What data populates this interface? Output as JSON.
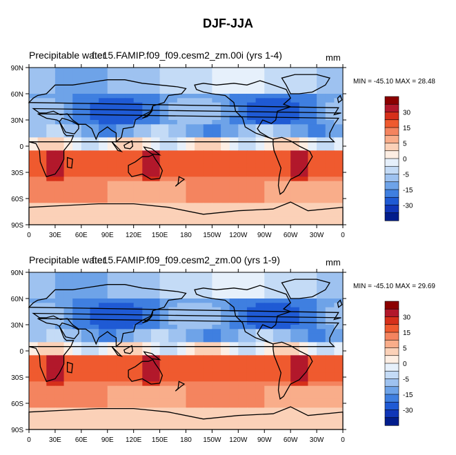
{
  "main_title": "DJF-JJA",
  "panels": [
    {
      "label_left": "Precipitable water",
      "label_center": "f.e15.FAMIP.f09_f09.cesm2_zm.00i (yrs 1-4)",
      "unit": "mm",
      "stats": "MIN = -45.10 MAX =  28.48"
    },
    {
      "label_left": "Precipitable water",
      "label_center": "f.e15.FAMIP.f09_f09.cesm2_zm.00 (yrs 1-9)",
      "unit": "mm",
      "stats": "MIN = -45.10 MAX =  29.69"
    }
  ],
  "chart_data": {
    "type": "heatmap",
    "title": "DJF-JJA",
    "xlabel": "",
    "ylabel": "",
    "x_ticks": [
      "0",
      "30E",
      "60E",
      "90E",
      "120E",
      "150E",
      "180",
      "150W",
      "120W",
      "90W",
      "60W",
      "30W",
      "0"
    ],
    "y_ticks": [
      "90N",
      "60N",
      "30N",
      "0",
      "30S",
      "60S",
      "90S"
    ],
    "colorbar_labels": [
      "30",
      "15",
      "5",
      "0",
      "-5",
      "-15",
      "-30"
    ],
    "colorbar_colors": [
      "#8b0000",
      "#b2182b",
      "#d6301a",
      "#ef5a2f",
      "#f4845f",
      "#f9ad8a",
      "#fbd1b8",
      "#fdeee3",
      "#e6f0fb",
      "#c4dbf6",
      "#9ec2f0",
      "#6ea3e8",
      "#3f7fe0",
      "#1f5ad4",
      "#1036b8",
      "#021d8c"
    ],
    "series": [
      {
        "label": "f.e15.FAMIP.f09_f09.cesm2_zm.00i (yrs 1-4)",
        "min": -45.1,
        "max": 28.48,
        "zonal_bands": [
          {
            "lat": "90N-60N",
            "value": -12
          },
          {
            "lat": "60N-30N",
            "value": -22
          },
          {
            "lat": "30N-15N",
            "value": -18
          },
          {
            "lat": "15N-0",
            "value": -6
          },
          {
            "lat": "0-15S",
            "value": 8
          },
          {
            "lat": "15S-30S",
            "value": 14
          },
          {
            "lat": "30S-60S",
            "value": 6
          },
          {
            "lat": "60S-90S",
            "value": 2
          }
        ]
      },
      {
        "label": "f.e15.FAMIP.f09_f09.cesm2_zm.00 (yrs 1-9)",
        "min": -45.1,
        "max": 29.69,
        "zonal_bands": [
          {
            "lat": "90N-60N",
            "value": -12
          },
          {
            "lat": "60N-30N",
            "value": -22
          },
          {
            "lat": "30N-15N",
            "value": -18
          },
          {
            "lat": "15N-0",
            "value": -6
          },
          {
            "lat": "0-15S",
            "value": 8
          },
          {
            "lat": "15S-30S",
            "value": 14
          },
          {
            "lat": "30S-60S",
            "value": 6
          },
          {
            "lat": "60S-90S",
            "value": 2
          }
        ]
      }
    ]
  }
}
